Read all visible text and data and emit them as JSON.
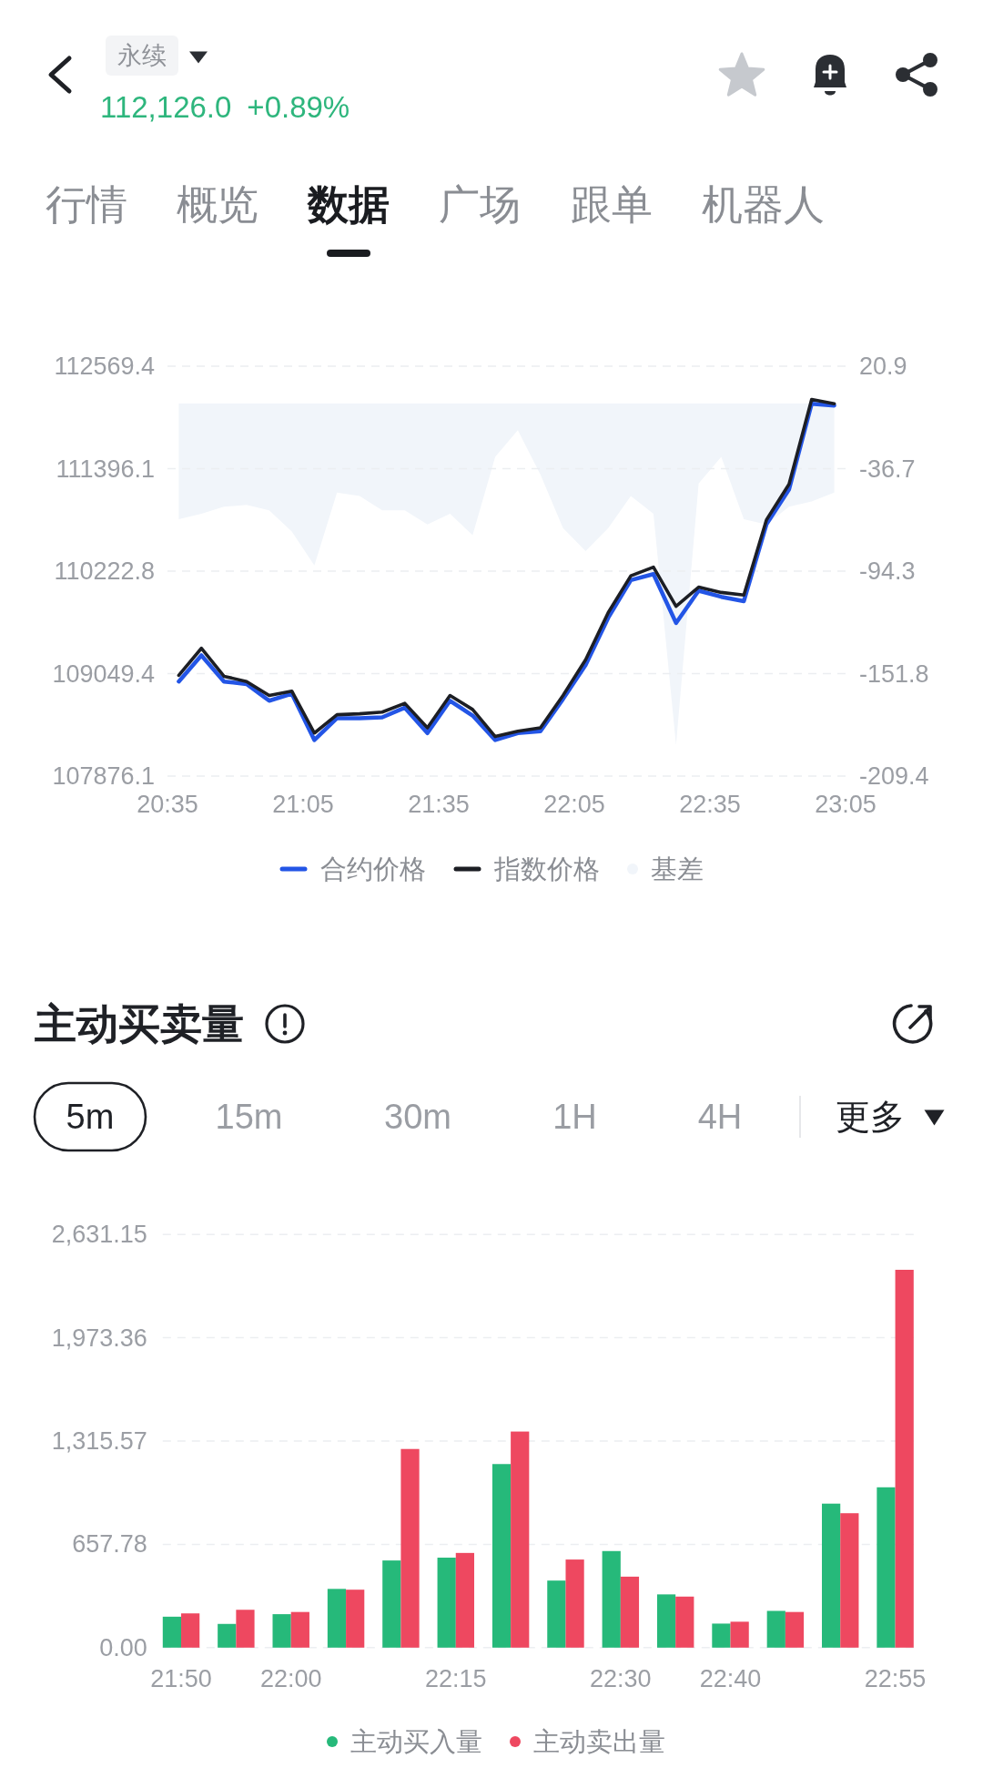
{
  "chart_data": [
    {
      "type": "other",
      "annotations": [
        "永续",
        "112,126.0",
        "+0.89%",
        "行情",
        "概览",
        "数据",
        "广场",
        "跟单",
        "机器人"
      ]
    },
    {
      "type": "line",
      "x": [
        20.625,
        20.70833,
        20.79167,
        20.875,
        20.95833,
        21.04167,
        21.125,
        21.20833,
        21.29167,
        21.375,
        21.45833,
        21.54167,
        21.625,
        21.70833,
        21.79167,
        21.875,
        21.95833,
        22.04167,
        22.125,
        22.20833,
        22.29167,
        22.375,
        22.45833,
        22.54167,
        22.625,
        22.70833,
        22.79167,
        22.875,
        22.95833,
        23.04167
      ],
      "xlim": [
        20.58333,
        23.08333
      ],
      "xticks": [
        {
          "value": 20.58333,
          "label": "20:35"
        },
        {
          "value": 21.08333,
          "label": "21:05"
        },
        {
          "value": 21.58333,
          "label": "21:35"
        },
        {
          "value": 22.08333,
          "label": "22:05"
        },
        {
          "value": 22.58333,
          "label": "22:35"
        },
        {
          "value": 23.08333,
          "label": "23:05"
        }
      ],
      "ylim": [
        107876.1,
        112569.4
      ],
      "yticks": [
        107876.1,
        109049.4,
        110222.8,
        111396.1,
        112569.4
      ],
      "y2lim": [
        -209.4,
        20.9
      ],
      "y2ticks": [
        -209.4,
        -151.8,
        -94.3,
        -36.7,
        20.9
      ],
      "grid": "y",
      "legend": "bottom",
      "series": [
        {
          "name": "合约价格",
          "color": "#2355e6",
          "values": [
            108960,
            109260,
            108960,
            108930,
            108740,
            108820,
            108290,
            108540,
            108540,
            108550,
            108660,
            108370,
            108740,
            108570,
            108290,
            108370,
            108390,
            108760,
            109150,
            109690,
            110120,
            110190,
            109630,
            110000,
            109930,
            109880,
            110760,
            111160,
            112140,
            112120
          ]
        },
        {
          "name": "指数价格",
          "color": "#1c1e24",
          "values": [
            109030,
            109340,
            109020,
            108960,
            108800,
            108850,
            108370,
            108580,
            108590,
            108610,
            108710,
            108430,
            108800,
            108640,
            108330,
            108390,
            108430,
            108800,
            109210,
            109750,
            110170,
            110270,
            109820,
            110040,
            109980,
            109950,
            110810,
            111220,
            112190,
            112140
          ]
        },
        {
          "name": "基差",
          "type": "area",
          "axis": "y2",
          "color": "#f1f5fa",
          "values": [
            -65,
            -62,
            -58,
            -57,
            -60,
            -72,
            -91,
            -50,
            -52,
            -60,
            -60,
            -68,
            -62,
            -74,
            -30,
            -15,
            -40,
            -70,
            -83,
            -70,
            -52,
            -62,
            -192,
            -45,
            -30,
            -65,
            -68,
            -58,
            -55,
            -50
          ]
        }
      ]
    },
    {
      "type": "bar",
      "title": "主动买卖量",
      "annotations": [
        "5m",
        "15m",
        "30m",
        "1H",
        "4H",
        "更多"
      ],
      "categories": [
        "21:50",
        null,
        "22:00",
        null,
        null,
        "22:15",
        null,
        null,
        "22:30",
        null,
        "22:40",
        null,
        null,
        "22:55"
      ],
      "ylim": [
        0,
        2631.15
      ],
      "yticks": [
        {
          "value": 0,
          "label": "0.00"
        },
        657.78,
        {
          "value": 1315.57,
          "label": "1,315.57"
        },
        {
          "value": 1973.36,
          "label": "1,973.36"
        },
        {
          "value": 2631.15,
          "label": "2,631.15"
        }
      ],
      "grid": "y",
      "legend": "bottom",
      "series": [
        {
          "name": "主动买入量",
          "color": "#26b97a",
          "values": [
            197,
            151,
            213,
            374,
            555,
            573,
            1169,
            427,
            615,
            339,
            153,
            234,
            917,
            1021
          ]
        },
        {
          "name": "主动卖出量",
          "color": "#ee4860",
          "values": [
            218,
            241,
            227,
            369,
            1265,
            603,
            1376,
            561,
            452,
            325,
            165,
            227,
            856,
            2406
          ]
        }
      ]
    }
  ]
}
